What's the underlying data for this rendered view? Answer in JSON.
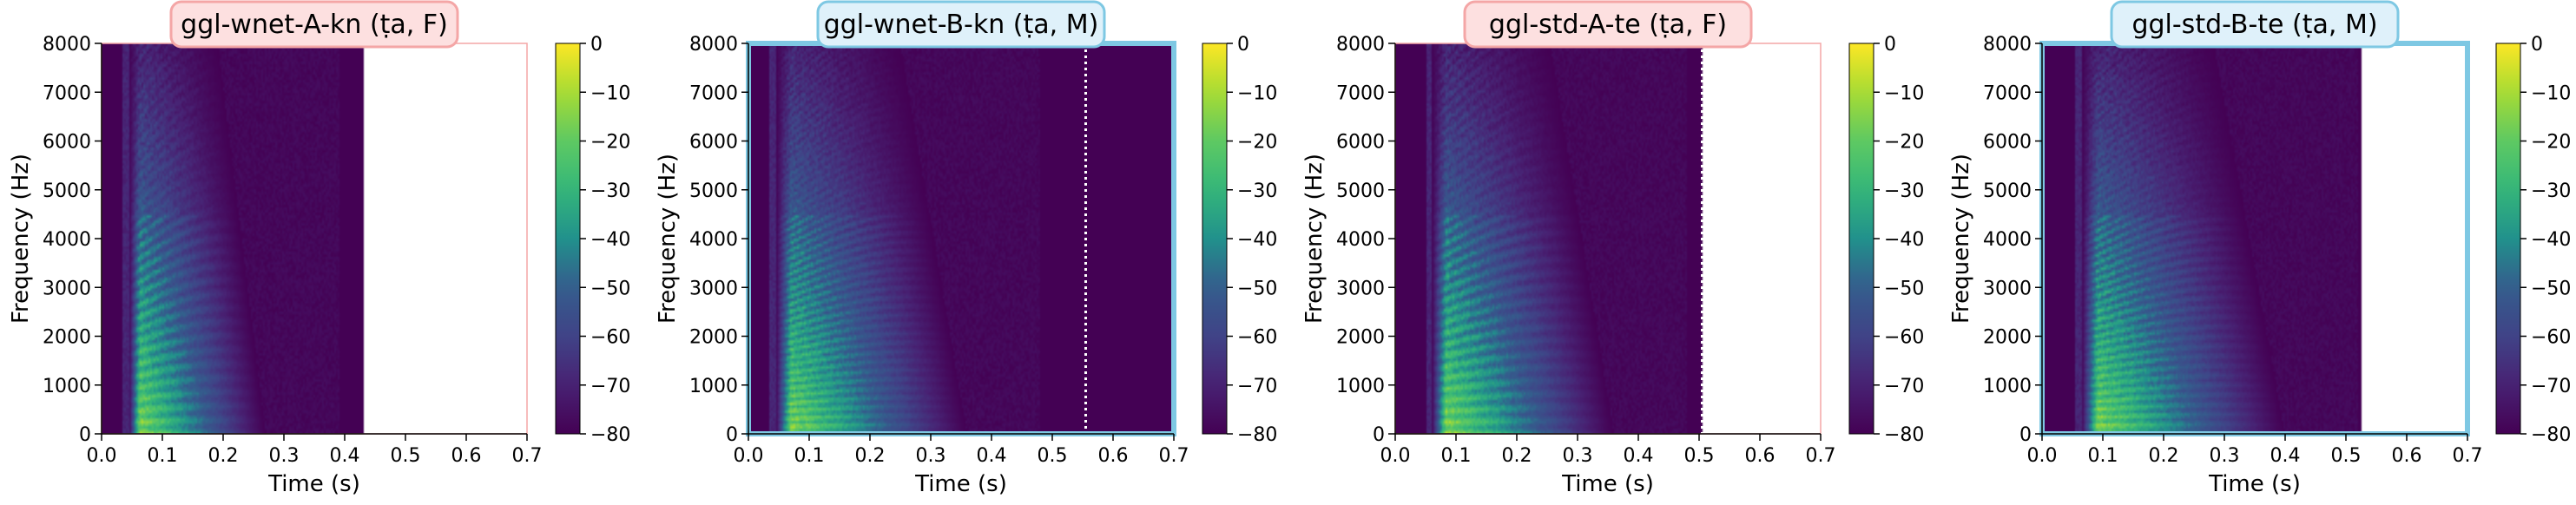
{
  "chart_data": [
    {
      "type": "heatmap",
      "title": "ggl-wnet-A-kn (ṭa, F)",
      "title_box_color": "#fde0e0",
      "title_border_color": "#f4a6a6",
      "frame_color": "#f4a6a6",
      "frame_emphasis": false,
      "xlabel": "Time (s)",
      "ylabel": "Frequency (Hz)",
      "xlim": [
        0.0,
        0.7
      ],
      "ylim": [
        0,
        8000
      ],
      "x_ticks": [
        0.0,
        0.1,
        0.2,
        0.3,
        0.4,
        0.5,
        0.6,
        0.7
      ],
      "x_tick_labels": [
        "0.0",
        "0.1",
        "0.2",
        "0.3",
        "0.4",
        "0.5",
        "0.6",
        "0.7"
      ],
      "y_ticks": [
        0,
        1000,
        2000,
        3000,
        4000,
        5000,
        6000,
        7000,
        8000
      ],
      "y_tick_labels": [
        "0",
        "1000",
        "2000",
        "3000",
        "4000",
        "5000",
        "6000",
        "7000",
        "8000"
      ],
      "spectrogram_end_s": 0.43,
      "onset_s": 0.045,
      "decay_end_s": 0.27,
      "harmonic_spacing_hz": 230,
      "end_marker_s": null,
      "colorbar": {
        "colormap": "viridis",
        "range": [
          -80,
          0
        ],
        "ticks": [
          0,
          -10,
          -20,
          -30,
          -40,
          -50,
          -60,
          -70,
          -80
        ],
        "tick_labels": [
          "0",
          "−10",
          "−20",
          "−30",
          "−40",
          "−50",
          "−60",
          "−70",
          "−80"
        ]
      }
    },
    {
      "type": "heatmap",
      "title": "ggl-wnet-B-kn (ṭa, M)",
      "title_box_color": "#dff1fa",
      "title_border_color": "#7ec8e3",
      "frame_color": "#7ec8e3",
      "frame_emphasis": true,
      "xlabel": "Time (s)",
      "ylabel": "Frequency (Hz)",
      "xlim": [
        0.0,
        0.7
      ],
      "ylim": [
        0,
        8000
      ],
      "x_ticks": [
        0.0,
        0.1,
        0.2,
        0.3,
        0.4,
        0.5,
        0.6,
        0.7
      ],
      "x_tick_labels": [
        "0.0",
        "0.1",
        "0.2",
        "0.3",
        "0.4",
        "0.5",
        "0.6",
        "0.7"
      ],
      "y_ticks": [
        0,
        1000,
        2000,
        3000,
        4000,
        5000,
        6000,
        7000,
        8000
      ],
      "y_tick_labels": [
        "0",
        "1000",
        "2000",
        "3000",
        "4000",
        "5000",
        "6000",
        "7000",
        "8000"
      ],
      "spectrogram_end_s": 0.7,
      "onset_s": 0.045,
      "decay_end_s": 0.36,
      "harmonic_spacing_hz": 150,
      "end_marker_s": 0.555,
      "colorbar": {
        "colormap": "viridis",
        "range": [
          -80,
          0
        ],
        "ticks": [
          0,
          -10,
          -20,
          -30,
          -40,
          -50,
          -60,
          -70,
          -80
        ],
        "tick_labels": [
          "0",
          "−10",
          "−20",
          "−30",
          "−40",
          "−50",
          "−60",
          "−70",
          "−80"
        ]
      }
    },
    {
      "type": "heatmap",
      "title": "ggl-std-A-te (ṭa, F)",
      "title_box_color": "#fde0e0",
      "title_border_color": "#f4a6a6",
      "frame_color": "#f4a6a6",
      "frame_emphasis": false,
      "xlabel": "Time (s)",
      "ylabel": "Frequency (Hz)",
      "xlim": [
        0.0,
        0.7
      ],
      "ylim": [
        0,
        8000
      ],
      "x_ticks": [
        0.0,
        0.1,
        0.2,
        0.3,
        0.4,
        0.5,
        0.6,
        0.7
      ],
      "x_tick_labels": [
        "0.0",
        "0.1",
        "0.2",
        "0.3",
        "0.4",
        "0.5",
        "0.6",
        "0.7"
      ],
      "y_ticks": [
        0,
        1000,
        2000,
        3000,
        4000,
        5000,
        6000,
        7000,
        8000
      ],
      "y_tick_labels": [
        "0",
        "1000",
        "2000",
        "3000",
        "4000",
        "5000",
        "6000",
        "7000",
        "8000"
      ],
      "spectrogram_end_s": 0.505,
      "onset_s": 0.06,
      "decay_end_s": 0.36,
      "harmonic_spacing_hz": 220,
      "end_marker_s": 0.505,
      "colorbar": {
        "colormap": "viridis",
        "range": [
          -80,
          0
        ],
        "ticks": [
          0,
          -10,
          -20,
          -30,
          -40,
          -50,
          -60,
          -70,
          -80
        ],
        "tick_labels": [
          "0",
          "−10",
          "−20",
          "−30",
          "−40",
          "−50",
          "−60",
          "−70",
          "−80"
        ]
      }
    },
    {
      "type": "heatmap",
      "title": "ggl-std-B-te (ṭa, M)",
      "title_box_color": "#dff1fa",
      "title_border_color": "#7ec8e3",
      "frame_color": "#7ec8e3",
      "frame_emphasis": true,
      "xlabel": "Time (s)",
      "ylabel": "Frequency (Hz)",
      "xlim": [
        0.0,
        0.7
      ],
      "ylim": [
        0,
        8000
      ],
      "x_ticks": [
        0.0,
        0.1,
        0.2,
        0.3,
        0.4,
        0.5,
        0.6,
        0.7
      ],
      "x_tick_labels": [
        "0.0",
        "0.1",
        "0.2",
        "0.3",
        "0.4",
        "0.5",
        "0.6",
        "0.7"
      ],
      "y_ticks": [
        0,
        1000,
        2000,
        3000,
        4000,
        5000,
        6000,
        7000,
        8000
      ],
      "y_tick_labels": [
        "0",
        "1000",
        "2000",
        "3000",
        "4000",
        "5000",
        "6000",
        "7000",
        "8000"
      ],
      "spectrogram_end_s": 0.525,
      "onset_s": 0.065,
      "decay_end_s": 0.4,
      "harmonic_spacing_hz": 160,
      "end_marker_s": null,
      "colorbar": {
        "colormap": "viridis",
        "range": [
          -80,
          0
        ],
        "ticks": [
          0,
          -10,
          -20,
          -30,
          -40,
          -50,
          -60,
          -70,
          -80
        ],
        "tick_labels": [
          "0",
          "−10",
          "−20",
          "−30",
          "−40",
          "−50",
          "−60",
          "−70",
          "−80"
        ]
      }
    }
  ]
}
